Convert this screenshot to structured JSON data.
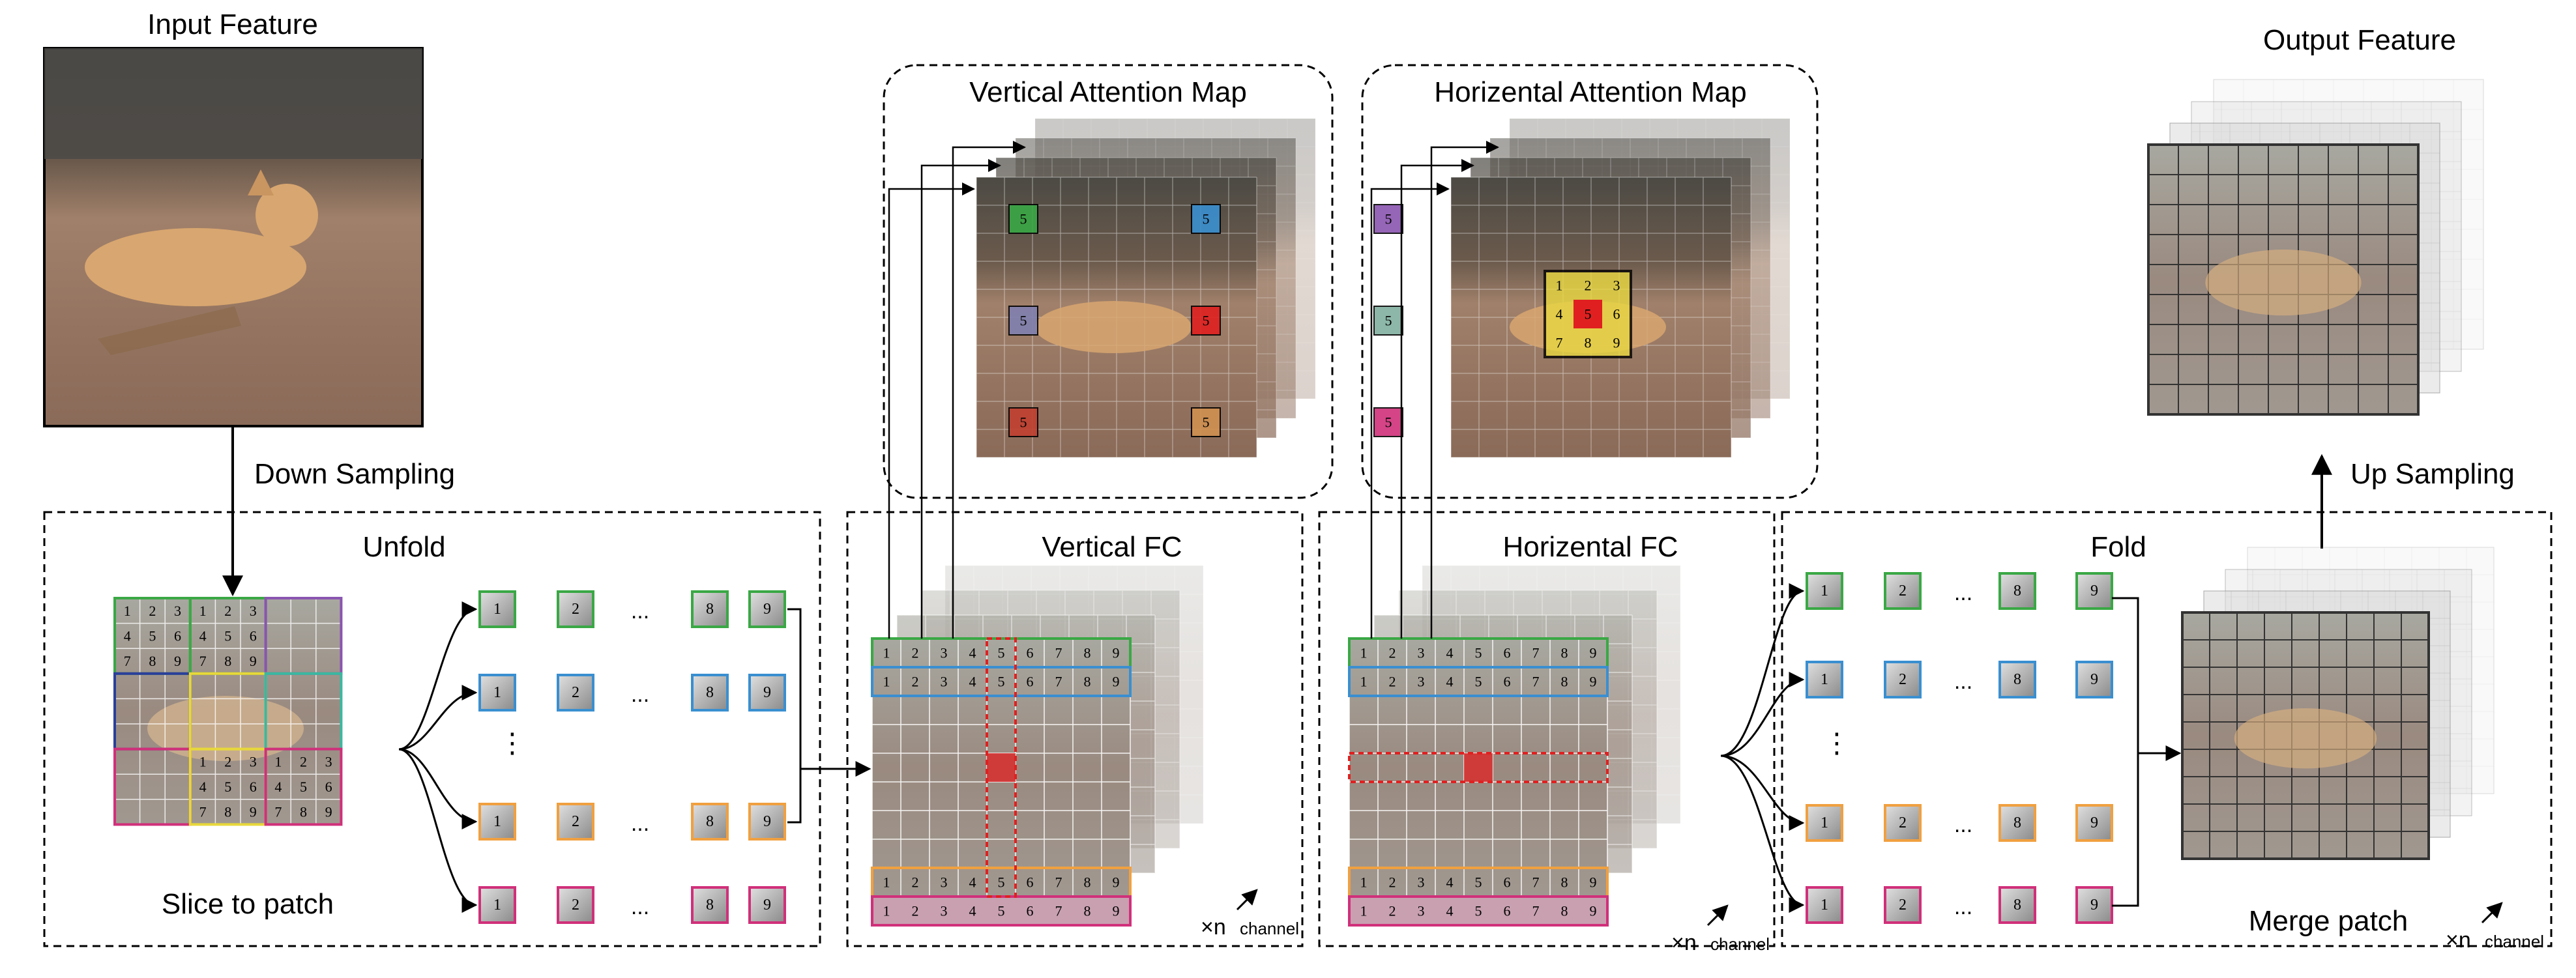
{
  "title_input": "Input Feature",
  "title_output": "Output Feature",
  "label_down": "Down Sampling",
  "label_up": "Up Sampling",
  "section_unfold": "Unfold",
  "section_vfc": "Vertical FC",
  "section_hfc": "Horizental FC",
  "section_fold": "Fold",
  "title_vmap": "Vertical Attention Map",
  "title_hmap": "Horizental Attention Map",
  "label_slice": "Slice to patch",
  "label_merge": "Merge patch",
  "times_n": "×n",
  "channel": "channel",
  "ellipsis": "...",
  "vdots": "⋮",
  "five": "5",
  "numbers": [
    "1",
    "2",
    "3",
    "4",
    "5",
    "6",
    "7",
    "8",
    "9"
  ],
  "patch_labels": [
    "1",
    "2",
    "8",
    "9"
  ],
  "colors": {
    "green": "#3aa845",
    "blue": "#3a8fd0",
    "yellow": "#e8d83a",
    "orange": "#f0a040",
    "pink": "#d0307a",
    "purple": "#8a55b0",
    "navy": "#2a3f9a",
    "teal": "#3ab8a0",
    "red": "#e02020",
    "brown_red": "#c04030"
  }
}
